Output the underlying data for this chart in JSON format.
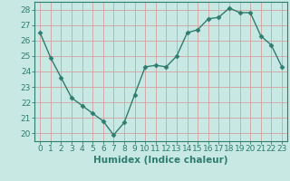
{
  "x": [
    0,
    1,
    2,
    3,
    4,
    5,
    6,
    7,
    8,
    9,
    10,
    11,
    12,
    13,
    14,
    15,
    16,
    17,
    18,
    19,
    20,
    21,
    22,
    23
  ],
  "y": [
    26.5,
    24.9,
    23.6,
    22.3,
    21.8,
    21.3,
    20.8,
    19.9,
    20.7,
    22.5,
    24.3,
    24.4,
    24.3,
    25.0,
    26.5,
    26.7,
    27.4,
    27.5,
    28.1,
    27.8,
    27.8,
    26.3,
    25.7,
    24.3
  ],
  "line_color": "#2e7d6e",
  "marker": "D",
  "marker_size": 2.5,
  "bg_color": "#c8e8e4",
  "grid_color": "#d4a0a0",
  "xlabel": "Humidex (Indice chaleur)",
  "ylim": [
    19.5,
    28.5
  ],
  "xlim": [
    -0.5,
    23.5
  ],
  "yticks": [
    20,
    21,
    22,
    23,
    24,
    25,
    26,
    27,
    28
  ],
  "xticks": [
    0,
    1,
    2,
    3,
    4,
    5,
    6,
    7,
    8,
    9,
    10,
    11,
    12,
    13,
    14,
    15,
    16,
    17,
    18,
    19,
    20,
    21,
    22,
    23
  ],
  "tick_label_fontsize": 6.5,
  "xlabel_fontsize": 7.5,
  "line_width": 1.0
}
